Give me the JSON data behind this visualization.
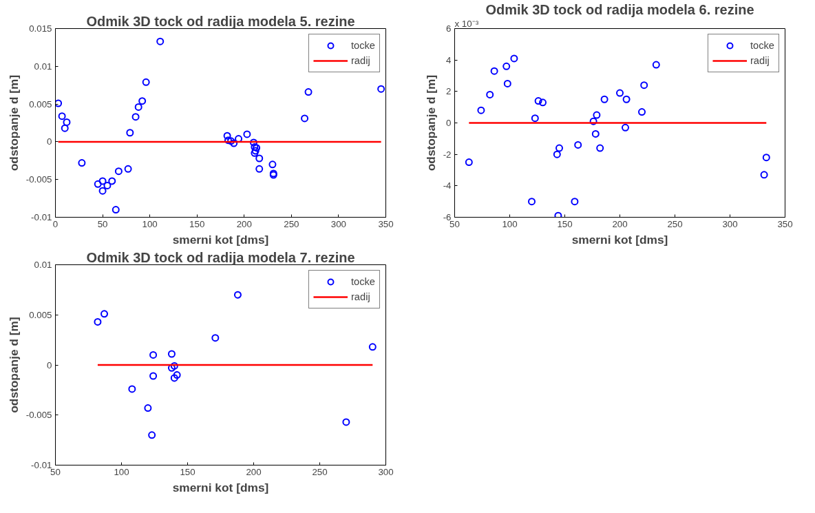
{
  "chart_data": [
    {
      "type": "scatter",
      "title": "Odmik 3D tock od radija modela 5. rezine",
      "xlabel": "smerni kot [dms]",
      "ylabel": "odstopanje d [m]",
      "xlim": [
        0,
        350
      ],
      "xticks": [
        0,
        50,
        100,
        150,
        200,
        250,
        300,
        350
      ],
      "ylim": [
        -0.01,
        0.015
      ],
      "yticks": [
        -0.01,
        -0.005,
        0,
        0.005,
        0.01,
        0.015
      ],
      "grid": false,
      "legend": "top right",
      "series": [
        {
          "name": "tocke",
          "marker": "circle",
          "color": "#0000ff",
          "x": [
            3,
            7,
            12,
            10,
            28,
            45,
            50,
            50,
            55,
            60,
            67,
            77,
            79,
            85,
            88,
            92,
            96,
            111,
            64,
            182,
            183,
            186,
            189,
            194,
            203,
            210,
            211,
            212,
            211,
            213,
            216,
            216,
            230,
            231,
            231,
            264,
            268,
            345
          ],
          "values": [
            0.0051,
            0.0034,
            0.0026,
            0.0018,
            -0.0028,
            -0.0056,
            -0.0065,
            -0.0052,
            -0.0058,
            -0.0052,
            -0.0039,
            -0.0036,
            0.0012,
            0.0033,
            0.0046,
            0.0054,
            0.0079,
            0.0133,
            -0.009,
            0.0008,
            0.0002,
            0.0001,
            -0.0002,
            0.0004,
            0.001,
            -0.0001,
            -0.0007,
            -0.0012,
            -0.0015,
            -0.0008,
            -0.0022,
            -0.0036,
            -0.003,
            -0.0042,
            -0.0044,
            0.0031,
            0.0066,
            0.007
          ]
        },
        {
          "name": "radij",
          "type": "line",
          "color": "#ff0000",
          "x": [
            3,
            345
          ],
          "values": [
            0,
            0
          ]
        }
      ]
    },
    {
      "type": "scatter",
      "title": "Odmik 3D tock od radija modela 6. rezine",
      "xlabel": "smerni kot [dms]",
      "ylabel": "odstopanje d [m]",
      "annotations": [
        "x 10⁻³"
      ],
      "xlim": [
        50,
        350
      ],
      "xticks": [
        50,
        100,
        150,
        200,
        250,
        300,
        350
      ],
      "ylim": [
        -6,
        6
      ],
      "yticks": [
        -6,
        -4,
        -2,
        0,
        2,
        4,
        6
      ],
      "grid": false,
      "legend": "top right",
      "series": [
        {
          "name": "tocke",
          "marker": "circle",
          "color": "#0000ff",
          "x": [
            63,
            74,
            82,
            86,
            97,
            98,
            104,
            120,
            123,
            126,
            130,
            143,
            145,
            144,
            159,
            162,
            176,
            178,
            179,
            182,
            186,
            200,
            206,
            205,
            220,
            222,
            233,
            331,
            333
          ],
          "values": [
            -2.5,
            0.8,
            1.8,
            3.3,
            3.6,
            2.5,
            4.1,
            -5.0,
            0.3,
            1.4,
            1.3,
            -2.0,
            -1.6,
            -5.9,
            -5.0,
            -1.4,
            0.1,
            -0.7,
            0.5,
            -1.6,
            1.5,
            1.9,
            1.5,
            -0.3,
            0.7,
            2.4,
            3.7,
            -3.3,
            -2.2
          ]
        },
        {
          "name": "radij",
          "type": "line",
          "color": "#ff0000",
          "x": [
            63,
            333
          ],
          "values": [
            0,
            0
          ]
        }
      ]
    },
    {
      "type": "scatter",
      "title": "Odmik 3D tock od radija modela 7. rezine",
      "xlabel": "smerni kot [dms]",
      "ylabel": "odstopanje d [m]",
      "xlim": [
        50,
        300
      ],
      "xticks": [
        50,
        100,
        150,
        200,
        250,
        300
      ],
      "ylim": [
        -0.01,
        0.01
      ],
      "yticks": [
        -0.01,
        -0.005,
        0,
        0.005,
        0.01
      ],
      "grid": false,
      "legend": "top right",
      "series": [
        {
          "name": "tocke",
          "marker": "circle",
          "color": "#0000ff",
          "x": [
            87,
            82,
            108,
            120,
            123,
            124,
            124,
            138,
            138,
            140,
            140,
            142,
            171,
            188,
            270,
            290
          ],
          "values": [
            0.0051,
            0.0043,
            -0.0024,
            -0.0043,
            -0.007,
            0.001,
            -0.0011,
            0.0011,
            -0.0003,
            -0.0001,
            -0.0013,
            -0.001,
            0.0027,
            0.007,
            -0.0057,
            0.0018
          ]
        },
        {
          "name": "radij",
          "type": "line",
          "color": "#ff0000",
          "x": [
            82,
            290
          ],
          "values": [
            0,
            0
          ]
        }
      ]
    }
  ]
}
